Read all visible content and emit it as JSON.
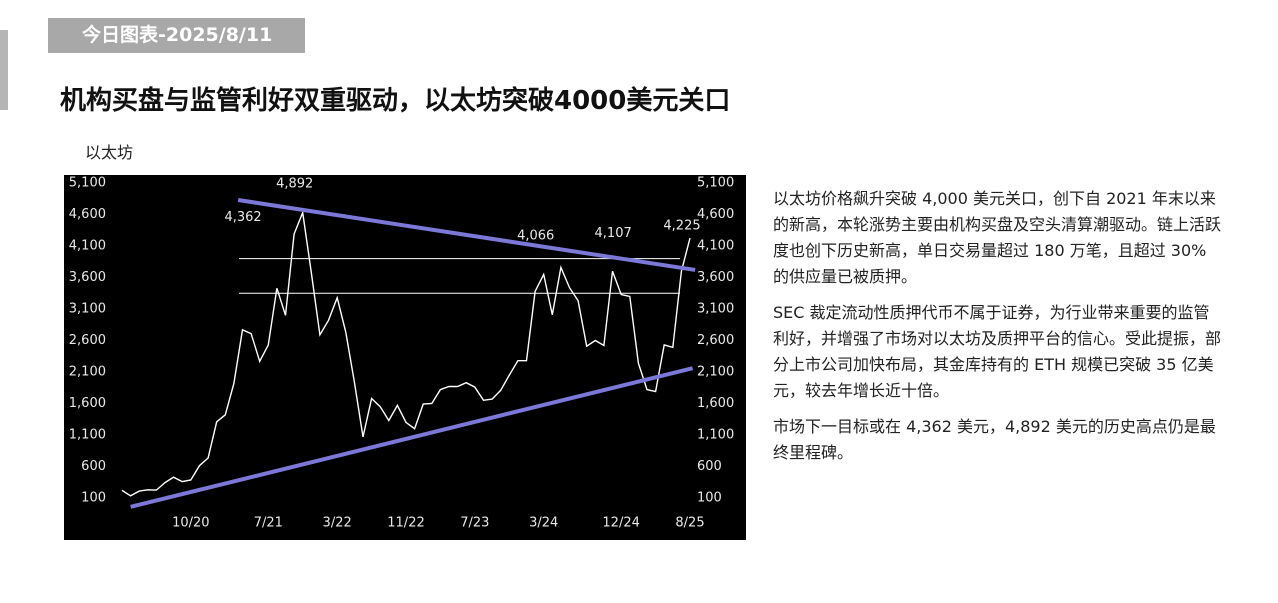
{
  "header": {
    "tag": "今日图表-2025/8/11",
    "title": "机构买盘与监管利好双重驱动，以太坊突破4000美元关口"
  },
  "body": {
    "paragraphs": [
      "以太坊价格飙升突破 4,000 美元关口，创下自 2021 年末以来的新高，本轮涨势主要由机构买盘及空头清算潮驱动。链上活跃度也创下历史新高，单日交易量超过 180 万笔，且超过 30% 的供应量已被质押。",
      "SEC 裁定流动性质押代币不属于证券，为行业带来重要的监管利好，并增强了市场对以太坊及质押平台的信心。受此提振，部分上市公司加快布局，其金库持有的 ETH 规模已突破 35 亿美元，较去年增长近十倍。",
      "市场下一目标或在 4,362 美元，4,892 美元的历史高点仍是最终里程碑。"
    ]
  },
  "chart_data": {
    "type": "line",
    "title": "以太坊",
    "categories": [
      null,
      null,
      null,
      null,
      null,
      null,
      null,
      null,
      "10/20",
      null,
      null,
      null,
      null,
      null,
      null,
      null,
      null,
      "7/21",
      null,
      null,
      null,
      null,
      null,
      null,
      null,
      "3/22",
      null,
      null,
      null,
      null,
      null,
      null,
      null,
      "11/22",
      null,
      null,
      null,
      null,
      null,
      null,
      null,
      "7/23",
      null,
      null,
      null,
      null,
      null,
      null,
      null,
      "3/24",
      null,
      null,
      null,
      null,
      null,
      null,
      null,
      null,
      "12/24",
      null,
      null,
      null,
      null,
      null,
      null,
      null,
      "8/25"
    ],
    "values": [
      220,
      135,
      210,
      230,
      225,
      345,
      430,
      360,
      385,
      615,
      735,
      1310,
      1420,
      1920,
      2770,
      2710,
      2270,
      2530,
      3430,
      3000,
      4290,
      4630,
      3680,
      2690,
      2920,
      3280,
      2730,
      1940,
      1070,
      1680,
      1550,
      1330,
      1570,
      1300,
      1200,
      1590,
      1600,
      1820,
      1870,
      1870,
      1930,
      1860,
      1650,
      1670,
      1810,
      2050,
      2280,
      2280,
      3380,
      3650,
      3010,
      3760,
      3440,
      3230,
      2510,
      2600,
      2520,
      3700,
      3330,
      3300,
      2240,
      1820,
      1790,
      2530,
      2490,
      3700,
      4225
    ],
    "color": "#ffffff",
    "ylim": [
      100,
      5100
    ],
    "yticks": [
      100,
      600,
      {
        "value": 1100,
        "label": "1,100"
      },
      {
        "value": 1600,
        "label": "1,600"
      },
      {
        "value": 2100,
        "label": "2,100"
      },
      {
        "value": 2600,
        "label": "2,600"
      },
      {
        "value": 3100,
        "label": "3,100"
      },
      {
        "value": 3600,
        "label": "3,600"
      },
      {
        "value": 4100,
        "label": "4,100"
      },
      {
        "value": 4600,
        "label": "4,600"
      },
      {
        "value": 5100,
        "label": "5,100"
      }
    ],
    "annotations": [
      {
        "index": 15,
        "value": 4362,
        "label": "4,362"
      },
      {
        "index": 21,
        "value": 4892,
        "label": "4,892"
      },
      {
        "index": 49,
        "value": 4066,
        "label": "4,066"
      },
      {
        "index": 58,
        "value": 4107,
        "label": "4,107"
      },
      {
        "index": 66,
        "value": 4225,
        "label": "4,225"
      }
    ],
    "reference_lines": [
      3900,
      3350
    ],
    "trendlines": [
      {
        "x": [
          13.5,
          66.6
        ],
        "y": [
          4830,
          3720
        ],
        "color": "#7b78d8"
      },
      {
        "x": [
          1,
          66.3
        ],
        "y": [
          -40,
          2160
        ],
        "color": "#7b78d8"
      }
    ]
  }
}
